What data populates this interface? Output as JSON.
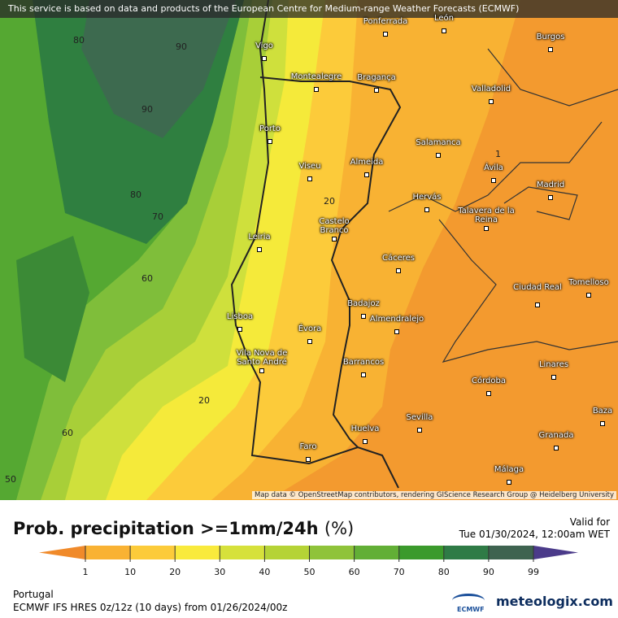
{
  "banner": "This service is based on data and products of the European Centre for Medium-range Weather Forecasts (ECMWF)",
  "cities": [
    "Vigo",
    "Ponferrada",
    "León",
    "Burgos",
    "Montealegre",
    "Bragança",
    "Valladolid",
    "Porto",
    "Salamanca",
    "Viseu",
    "Almeida",
    "Ávila",
    "Madrid",
    "Hervás",
    "Talavera de la Reina",
    "Castelo Branco",
    "Leiria",
    "Cáceres",
    "Ciudad Real",
    "Tomelloso",
    "Badajoz",
    "Almendralejo",
    "Lisboa",
    "Évora",
    "Vila Nova de Santo André",
    "Barrancos",
    "Linares",
    "Córdoba",
    "Baza",
    "Sevilla",
    "Granada",
    "Huelva",
    "Faro",
    "Málaga"
  ],
  "contour_labels": [
    "80",
    "90",
    "90",
    "80",
    "70",
    "60",
    "20",
    "20",
    "60",
    "50",
    "1"
  ],
  "attribution": "Map data © OpenStreetMap contributors, rendering GIScience Research Group @ Heidelberg University",
  "legend": {
    "title": "Prob. precipitation >=1mm/24h",
    "unit": "(%)",
    "ticks": [
      1,
      10,
      20,
      30,
      40,
      50,
      60,
      70,
      80,
      90,
      99
    ],
    "colors": [
      "#f9b233",
      "#fccb3a",
      "#f9ea3c",
      "#d6e13b",
      "#b5d336",
      "#8fc33a",
      "#62af36",
      "#3b9a2c",
      "#2f7b46",
      "#3e6350"
    ],
    "below_color": "#f08a2a",
    "above_color": "#4b3b8a"
  },
  "valid_label": "Valid for",
  "valid_time": "Tue 01/30/2024, 12:00am WET",
  "region": "Portugal",
  "model": "ECMWF IFS HRES 0z/12z (10 days) from 01/26/2024/00z",
  "logo_ecmwf": "ECMWF",
  "logo_site": "meteologix.com"
}
